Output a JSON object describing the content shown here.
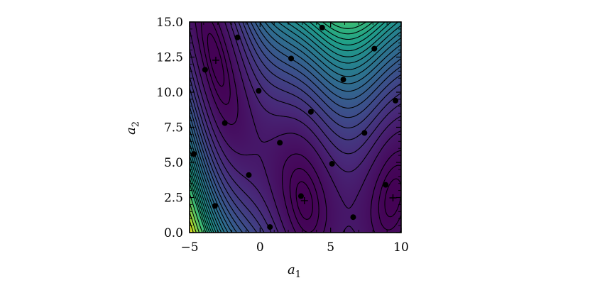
{
  "chart_data": {
    "type": "contour",
    "title": "",
    "xlabel": {
      "symbol": "a",
      "subscript": "1"
    },
    "ylabel": {
      "symbol": "a",
      "subscript": "2"
    },
    "xlim": [
      -5,
      10
    ],
    "ylim": [
      0,
      15
    ],
    "xticks": [
      -5,
      0,
      5,
      10
    ],
    "xtick_labels": [
      "−5",
      "0",
      "5",
      "10"
    ],
    "yticks": [
      0,
      2.5,
      5,
      7.5,
      10,
      12.5,
      15
    ],
    "ytick_labels": [
      "0.0",
      "2.5",
      "5.0",
      "7.5",
      "10.0",
      "12.5",
      "15.0"
    ],
    "function": "Branin",
    "colormap": "viridis",
    "contour_levels": [
      2,
      5,
      10,
      20,
      30,
      40,
      50,
      60,
      70,
      80,
      90,
      100,
      110,
      120,
      130,
      140,
      150,
      160,
      170,
      180,
      190,
      200,
      220,
      240,
      260,
      280
    ],
    "sample_points": [
      {
        "x": -4.7,
        "y": 5.6
      },
      {
        "x": -3.9,
        "y": 11.6
      },
      {
        "x": -3.2,
        "y": 1.9
      },
      {
        "x": -2.5,
        "y": 7.8
      },
      {
        "x": -1.6,
        "y": 13.9
      },
      {
        "x": -0.8,
        "y": 4.1
      },
      {
        "x": -0.1,
        "y": 10.1
      },
      {
        "x": 0.7,
        "y": 0.4
      },
      {
        "x": 1.4,
        "y": 6.4
      },
      {
        "x": 2.2,
        "y": 12.4
      },
      {
        "x": 2.9,
        "y": 2.6
      },
      {
        "x": 3.6,
        "y": 8.6
      },
      {
        "x": 4.4,
        "y": 14.6
      },
      {
        "x": 5.1,
        "y": 4.9
      },
      {
        "x": 5.9,
        "y": 10.9
      },
      {
        "x": 6.6,
        "y": 1.1
      },
      {
        "x": 7.4,
        "y": 7.1
      },
      {
        "x": 8.1,
        "y": 13.1
      },
      {
        "x": 8.9,
        "y": 3.4
      },
      {
        "x": 9.6,
        "y": 9.4
      }
    ],
    "optima_markers": [
      {
        "x": -3.14,
        "y": 12.275
      },
      {
        "x": 3.14,
        "y": 2.275
      },
      {
        "x": 9.42,
        "y": 2.475
      }
    ]
  }
}
